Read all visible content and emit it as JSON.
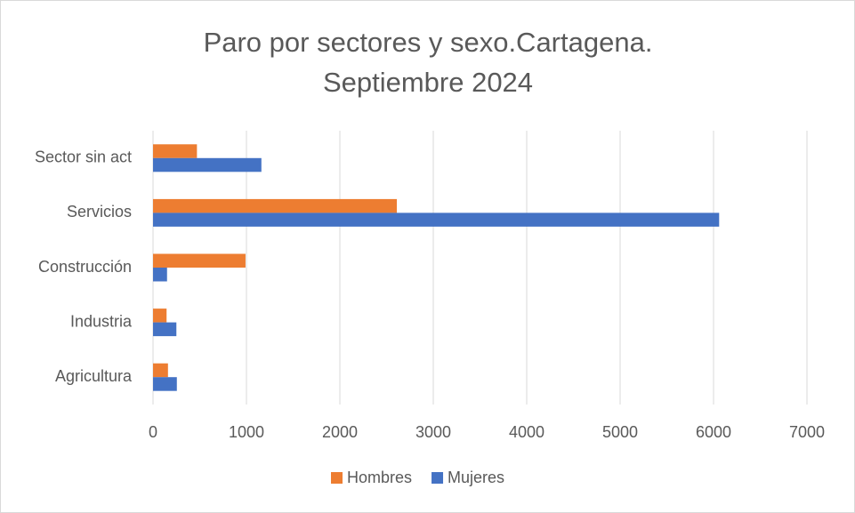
{
  "chart_data": {
    "type": "bar",
    "orientation": "horizontal",
    "title": [
      "Paro por sectores y sexo.Cartagena.",
      "Septiembre 2024"
    ],
    "categories": [
      "Sector sin act",
      "Servicios",
      "Construcción",
      "Industria",
      "Agricultura"
    ],
    "series": [
      {
        "name": "Hombres",
        "color": "#ed7d31",
        "values": [
          470,
          2610,
          990,
          145,
          160
        ]
      },
      {
        "name": "Mujeres",
        "color": "#4472c4",
        "values": [
          1160,
          6060,
          150,
          250,
          255
        ]
      }
    ],
    "xlim": [
      0,
      7000
    ],
    "xticks": [
      0,
      1000,
      2000,
      3000,
      4000,
      5000,
      6000,
      7000
    ],
    "grid": true,
    "legend": "bottom"
  }
}
